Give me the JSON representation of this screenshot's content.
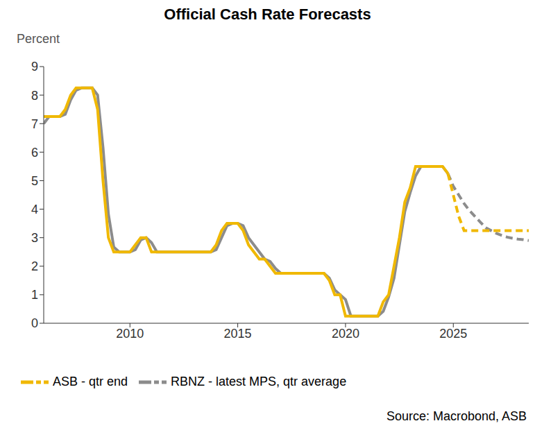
{
  "chart_data": {
    "type": "line",
    "title": "Official Cash Rate Forecasts",
    "y_label": "Percent",
    "source": "Source: Macrobond, ASB",
    "grid": false,
    "legend": "bottom-left",
    "x": [
      2006,
      2006.25,
      2006.5,
      2006.75,
      2007,
      2007.25,
      2007.5,
      2007.75,
      2008,
      2008.25,
      2008.5,
      2008.75,
      2009,
      2009.25,
      2009.5,
      2009.75,
      2010,
      2010.25,
      2010.5,
      2010.75,
      2011,
      2011.25,
      2011.5,
      2011.75,
      2012,
      2012.25,
      2012.5,
      2012.75,
      2013,
      2013.25,
      2013.5,
      2013.75,
      2014,
      2014.25,
      2014.5,
      2014.75,
      2015,
      2015.25,
      2015.5,
      2015.75,
      2016,
      2016.25,
      2016.5,
      2016.75,
      2017,
      2017.25,
      2017.5,
      2017.75,
      2018,
      2018.25,
      2018.5,
      2018.75,
      2019,
      2019.25,
      2019.5,
      2019.75,
      2020,
      2020.25,
      2020.5,
      2020.75,
      2021,
      2021.25,
      2021.5,
      2021.75,
      2022,
      2022.25,
      2022.5,
      2022.75,
      2023,
      2023.25,
      2023.5,
      2023.75,
      2024,
      2024.25,
      2024.5,
      2024.75,
      2025,
      2025.25,
      2025.5,
      2025.75,
      2026,
      2026.25,
      2026.5,
      2026.75,
      2027,
      2027.25,
      2027.5,
      2027.75,
      2028,
      2028.25,
      2028.5
    ],
    "xlim": [
      2006,
      2028.5
    ],
    "xticks": [
      2010,
      2015,
      2020,
      2025
    ],
    "ylim": [
      0,
      9
    ],
    "yticks": [
      0,
      1,
      2,
      3,
      4,
      5,
      6,
      7,
      8,
      9
    ],
    "series": [
      {
        "name": "ASB - qtr end",
        "color": "#F0B800",
        "line_style": "solid",
        "values": [
          7.25,
          7.25,
          7.25,
          7.25,
          7.5,
          8,
          8.25,
          8.25,
          8.25,
          8.25,
          7.5,
          5,
          3,
          2.5,
          2.5,
          2.5,
          2.5,
          2.75,
          3,
          3,
          2.5,
          2.5,
          2.5,
          2.5,
          2.5,
          2.5,
          2.5,
          2.5,
          2.5,
          2.5,
          2.5,
          2.5,
          2.75,
          3.25,
          3.5,
          3.5,
          3.5,
          3.25,
          2.75,
          2.5,
          2.25,
          2.25,
          2,
          1.75,
          1.75,
          1.75,
          1.75,
          1.75,
          1.75,
          1.75,
          1.75,
          1.75,
          1.75,
          1.5,
          1,
          1,
          0.25,
          0.25,
          0.25,
          0.25,
          0.25,
          0.25,
          0.25,
          0.75,
          1,
          2,
          3,
          4.25,
          4.75,
          5.5,
          5.5,
          5.5,
          5.5,
          5.5,
          5.5,
          5.25,
          null,
          null,
          null,
          null,
          null,
          null,
          null,
          null,
          null,
          null,
          null,
          null,
          null,
          null,
          null
        ]
      },
      {
        "name": "ASB - qtr end",
        "color": "#F0B800",
        "line_style": "dashed",
        "values": [
          null,
          null,
          null,
          null,
          null,
          null,
          null,
          null,
          null,
          null,
          null,
          null,
          null,
          null,
          null,
          null,
          null,
          null,
          null,
          null,
          null,
          null,
          null,
          null,
          null,
          null,
          null,
          null,
          null,
          null,
          null,
          null,
          null,
          null,
          null,
          null,
          null,
          null,
          null,
          null,
          null,
          null,
          null,
          null,
          null,
          null,
          null,
          null,
          null,
          null,
          null,
          null,
          null,
          null,
          null,
          null,
          null,
          null,
          null,
          null,
          null,
          null,
          null,
          null,
          null,
          null,
          null,
          null,
          null,
          null,
          null,
          null,
          null,
          null,
          null,
          5.25,
          4.5,
          3.75,
          3.25,
          3.25,
          3.25,
          3.25,
          3.25,
          3.25,
          3.25,
          3.25,
          3.25,
          3.25,
          3.25,
          3.25,
          3.25
        ]
      },
      {
        "name": "RBNZ - latest MPS, qtr average",
        "color": "#8C8C8C",
        "line_style": "solid",
        "values": [
          7,
          7.25,
          7.25,
          7.25,
          7.33,
          7.83,
          8.17,
          8.25,
          8.25,
          8.25,
          8,
          6.17,
          3.83,
          2.67,
          2.5,
          2.5,
          2.5,
          2.58,
          2.92,
          3,
          2.83,
          2.5,
          2.5,
          2.5,
          2.5,
          2.5,
          2.5,
          2.5,
          2.5,
          2.5,
          2.5,
          2.5,
          2.58,
          3,
          3.42,
          3.5,
          3.5,
          3.42,
          3,
          2.75,
          2.5,
          2.25,
          2.17,
          1.92,
          1.75,
          1.75,
          1.75,
          1.75,
          1.75,
          1.75,
          1.75,
          1.75,
          1.75,
          1.58,
          1.17,
          1,
          0.83,
          0.25,
          0.25,
          0.25,
          0.25,
          0.25,
          0.25,
          0.42,
          0.92,
          1.58,
          2.75,
          3.92,
          4.58,
          5.17,
          5.5,
          5.5,
          5.5,
          5.5,
          5.5,
          5.25,
          null,
          null,
          null,
          null,
          null,
          null,
          null,
          null,
          null,
          null,
          null,
          null,
          null,
          null,
          null
        ]
      },
      {
        "name": "RBNZ - latest MPS, qtr average",
        "color": "#8C8C8C",
        "line_style": "dashed",
        "values": [
          null,
          null,
          null,
          null,
          null,
          null,
          null,
          null,
          null,
          null,
          null,
          null,
          null,
          null,
          null,
          null,
          null,
          null,
          null,
          null,
          null,
          null,
          null,
          null,
          null,
          null,
          null,
          null,
          null,
          null,
          null,
          null,
          null,
          null,
          null,
          null,
          null,
          null,
          null,
          null,
          null,
          null,
          null,
          null,
          null,
          null,
          null,
          null,
          null,
          null,
          null,
          null,
          null,
          null,
          null,
          null,
          null,
          null,
          null,
          null,
          null,
          null,
          null,
          null,
          null,
          null,
          null,
          null,
          null,
          null,
          null,
          null,
          null,
          null,
          null,
          5.25,
          4.8,
          4.5,
          4.2,
          3.95,
          3.75,
          3.55,
          3.35,
          3.25,
          3.15,
          3.08,
          3.02,
          2.98,
          2.95,
          2.93,
          2.9
        ]
      }
    ]
  }
}
